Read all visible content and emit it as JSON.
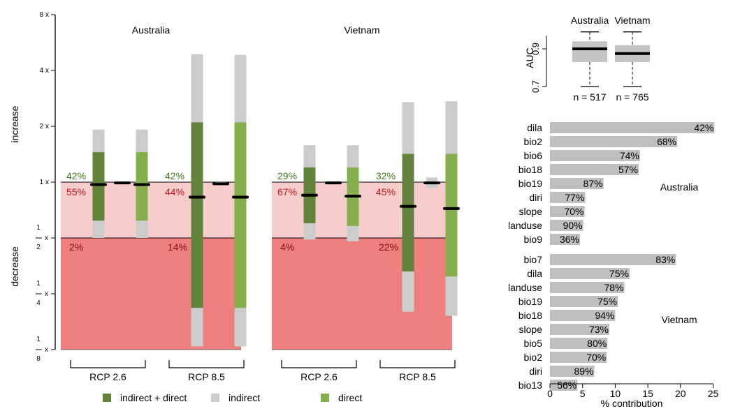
{
  "colors": {
    "increase_band": "#f7cccc",
    "decrease_band": "#ed7f7f",
    "indirect_direct": "#63823b",
    "indirect": "#cccccc",
    "direct": "#85ae4d",
    "median": "#000000",
    "pct_increase": "#3f7a1a",
    "pct_decrease": "#c0161b",
    "contrib_bar": "#bfbfbf"
  },
  "labels": {
    "increase": "increase",
    "decrease": "decrease",
    "scenario_1": "RCP 2.6",
    "scenario_2": "RCP 8.5"
  },
  "legend": [
    {
      "key": "indirect_direct",
      "label": "indirect + direct"
    },
    {
      "key": "indirect",
      "label": "indirect"
    },
    {
      "key": "direct",
      "label": "direct"
    }
  ],
  "chart_data": [
    {
      "type": "bar",
      "title": "",
      "y_scale": "log2",
      "ylim": [
        "1/8",
        "8"
      ],
      "y_ticks": [
        {
          "value": 8,
          "label": "8 x"
        },
        {
          "value": 4,
          "label": "4 x"
        },
        {
          "value": 2,
          "label": "2 x"
        },
        {
          "value": 1,
          "label": "1 x"
        },
        {
          "value": 0.5,
          "num": "1",
          "den": "2"
        },
        {
          "value": 0.25,
          "num": "1",
          "den": "4"
        },
        {
          "value": 0.125,
          "num": "1",
          "den": "8"
        }
      ],
      "panels": [
        {
          "name": "Australia",
          "scenarios": [
            {
              "label": "RCP 2.6",
              "pct_increase": "42%",
              "pct_decrease": "55%",
              "pct_halved": "2%",
              "bars": [
                {
                  "type": "indirect_direct",
                  "inner_low": 0.62,
                  "inner_high": 1.45,
                  "outer_low": 0.5,
                  "outer_high": 1.92,
                  "median": 0.97
                },
                {
                  "type": "indirect",
                  "outer_low": 0.99,
                  "outer_high": 1.0,
                  "median": 0.99
                },
                {
                  "type": "direct",
                  "inner_low": 0.62,
                  "inner_high": 1.45,
                  "outer_low": 0.5,
                  "outer_high": 1.92,
                  "median": 0.97
                }
              ]
            },
            {
              "label": "RCP 8.5",
              "pct_increase": "42%",
              "pct_decrease": "44%",
              "pct_halved": "14%",
              "bars": [
                {
                  "type": "indirect_direct",
                  "inner_low": 0.21,
                  "inner_high": 2.1,
                  "outer_low": 0.13,
                  "outer_high": 4.9,
                  "median": 0.83
                },
                {
                  "type": "indirect",
                  "outer_low": 0.98,
                  "outer_high": 1.0,
                  "median": 0.98
                },
                {
                  "type": "direct",
                  "inner_low": 0.21,
                  "inner_high": 2.1,
                  "outer_low": 0.13,
                  "outer_high": 4.85,
                  "median": 0.83
                }
              ]
            }
          ]
        },
        {
          "name": "Vietnam",
          "scenarios": [
            {
              "label": "RCP 2.6",
              "pct_increase": "29%",
              "pct_decrease": "67%",
              "pct_halved": "4%",
              "bars": [
                {
                  "type": "indirect_direct",
                  "inner_low": 0.6,
                  "inner_high": 1.2,
                  "outer_low": 0.49,
                  "outer_high": 1.58,
                  "median": 0.85
                },
                {
                  "type": "indirect",
                  "outer_low": 0.97,
                  "outer_high": 1.01,
                  "median": 0.99
                },
                {
                  "type": "direct",
                  "inner_low": 0.58,
                  "inner_high": 1.2,
                  "outer_low": 0.48,
                  "outer_high": 1.58,
                  "median": 0.84
                }
              ]
            },
            {
              "label": "RCP 8.5",
              "pct_increase": "32%",
              "pct_decrease": "45%",
              "pct_halved": "22%",
              "bars": [
                {
                  "type": "indirect_direct",
                  "inner_low": 0.33,
                  "inner_high": 1.42,
                  "outer_low": 0.2,
                  "outer_high": 2.7,
                  "median": 0.74
                },
                {
                  "type": "indirect",
                  "outer_low": 0.93,
                  "outer_high": 1.06,
                  "median": 0.99
                },
                {
                  "type": "direct",
                  "inner_low": 0.31,
                  "inner_high": 1.42,
                  "outer_low": 0.19,
                  "outer_high": 2.73,
                  "median": 0.72
                }
              ]
            }
          ]
        }
      ]
    },
    {
      "type": "box",
      "ylabel": "AUC",
      "ylim": [
        0.7,
        1.0
      ],
      "y_ticks": [
        0.7,
        0.9
      ],
      "categories": [
        "Australia",
        "Vietnam"
      ],
      "counts": [
        "n = 517",
        "n = 765"
      ],
      "boxes": [
        {
          "min": 0.7,
          "q1": 0.83,
          "median": 0.9,
          "q3": 0.94,
          "max": 0.99
        },
        {
          "min": 0.7,
          "q1": 0.83,
          "median": 0.875,
          "q3": 0.92,
          "max": 0.99
        }
      ]
    },
    {
      "type": "bar",
      "orientation": "horizontal",
      "xlabel": "% contribution",
      "xlim": [
        0,
        25
      ],
      "x_ticks": [
        0,
        5,
        10,
        15,
        20,
        25
      ],
      "groups": [
        {
          "name": "Australia",
          "bars": [
            {
              "variable": "dila",
              "value": 25.2,
              "label": "42%"
            },
            {
              "variable": "bio2",
              "value": 19.5,
              "label": "68%"
            },
            {
              "variable": "bio6",
              "value": 13.8,
              "label": "74%"
            },
            {
              "variable": "bio18",
              "value": 13.6,
              "label": "57%"
            },
            {
              "variable": "bio19",
              "value": 8.2,
              "label": "87%"
            },
            {
              "variable": "diri",
              "value": 5.4,
              "label": "77%"
            },
            {
              "variable": "slope",
              "value": 5.3,
              "label": "70%"
            },
            {
              "variable": "landuse",
              "value": 5.1,
              "label": "90%"
            },
            {
              "variable": "bio9",
              "value": 4.6,
              "label": "36%"
            }
          ]
        },
        {
          "name": "Vietnam",
          "bars": [
            {
              "variable": "bio7",
              "value": 19.3,
              "label": "83%"
            },
            {
              "variable": "dila",
              "value": 12.2,
              "label": "75%"
            },
            {
              "variable": "landuse",
              "value": 11.4,
              "label": "78%"
            },
            {
              "variable": "bio19",
              "value": 10.4,
              "label": "75%"
            },
            {
              "variable": "bio18",
              "value": 10.0,
              "label": "94%"
            },
            {
              "variable": "slope",
              "value": 9.1,
              "label": "73%"
            },
            {
              "variable": "bio5",
              "value": 8.8,
              "label": "80%"
            },
            {
              "variable": "bio2",
              "value": 8.7,
              "label": "70%"
            },
            {
              "variable": "diri",
              "value": 6.8,
              "label": "89%"
            },
            {
              "variable": "bio13",
              "value": 4.2,
              "label": "56%"
            }
          ]
        }
      ]
    }
  ]
}
